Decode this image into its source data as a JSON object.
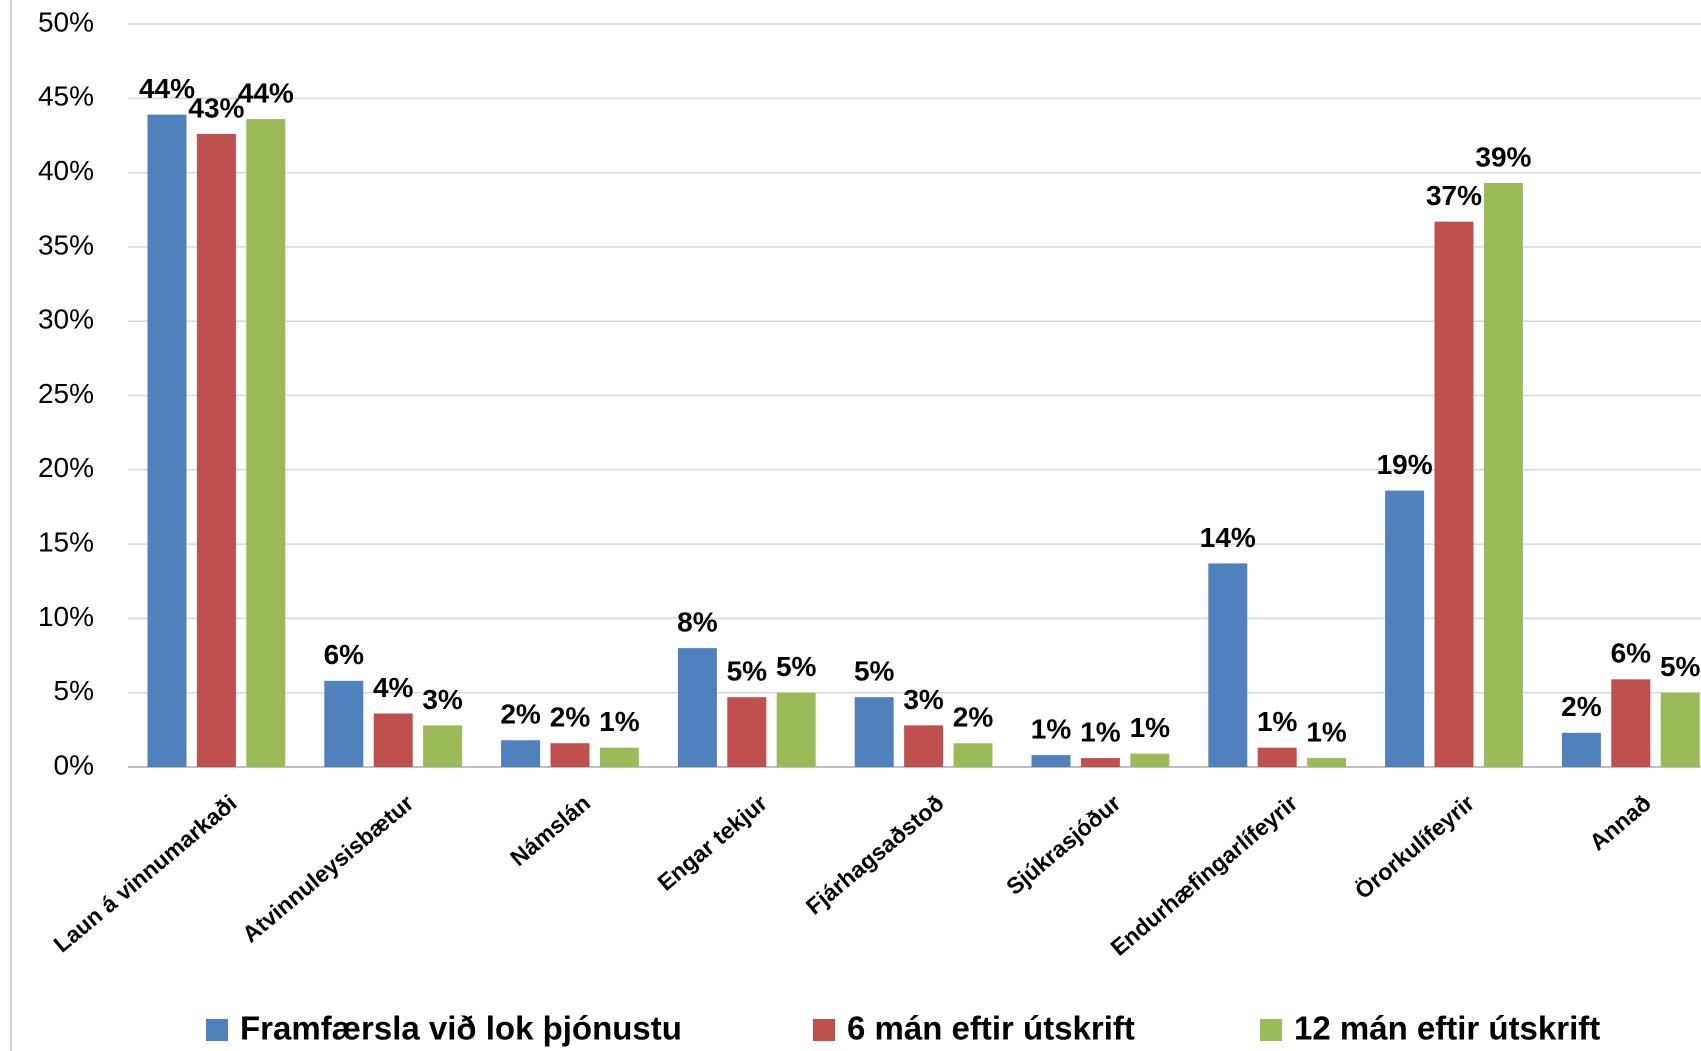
{
  "chart_data": {
    "type": "bar",
    "categories": [
      "Laun á vinnumarkaði",
      "Atvinnuleysisbætur",
      "Námslán",
      "Engar tekjur",
      "Fjárhagsaðstoð",
      "Sjúkrasjóður",
      "Endurhæfingarlífeyrir",
      "Örorkulífeyrir",
      "Annað"
    ],
    "series": [
      {
        "name": "Framfærsla við lok þjónustu",
        "color": "#4f81bd",
        "values": [
          43.9,
          5.8,
          1.8,
          8.0,
          4.7,
          0.8,
          13.7,
          18.6,
          2.3
        ],
        "value_labels": [
          "44%",
          "6%",
          "2%",
          "8%",
          "5%",
          "1%",
          "14%",
          "19%",
          "2%"
        ]
      },
      {
        "name": "6 mán eftir útskrift",
        "color": "#c0504d",
        "values": [
          42.6,
          3.6,
          1.6,
          4.7,
          2.8,
          0.6,
          1.3,
          36.7,
          5.9
        ],
        "value_labels": [
          "43%",
          "4%",
          "2%",
          "5%",
          "3%",
          "1%",
          "1%",
          "37%",
          "6%"
        ]
      },
      {
        "name": "12 mán eftir útskrift",
        "color": "#9bbb59",
        "values": [
          43.6,
          2.8,
          1.3,
          5.0,
          1.6,
          0.9,
          0.6,
          39.3,
          5.0
        ],
        "value_labels": [
          "44%",
          "3%",
          "1%",
          "5%",
          "2%",
          "1%",
          "1%",
          "39%",
          "5%"
        ]
      }
    ],
    "ylim": [
      0,
      50
    ],
    "yticks": [
      {
        "value": 0,
        "label": "0%"
      },
      {
        "value": 5,
        "label": "5%"
      },
      {
        "value": 10,
        "label": "10%"
      },
      {
        "value": 15,
        "label": "15%"
      },
      {
        "value": 20,
        "label": "20%"
      },
      {
        "value": 25,
        "label": "25%"
      },
      {
        "value": 30,
        "label": "30%"
      },
      {
        "value": 35,
        "label": "35%"
      },
      {
        "value": 40,
        "label": "40%"
      },
      {
        "value": 45,
        "label": "45%"
      },
      {
        "value": 50,
        "label": "50%"
      }
    ],
    "grid": true,
    "legend": "bottom"
  }
}
